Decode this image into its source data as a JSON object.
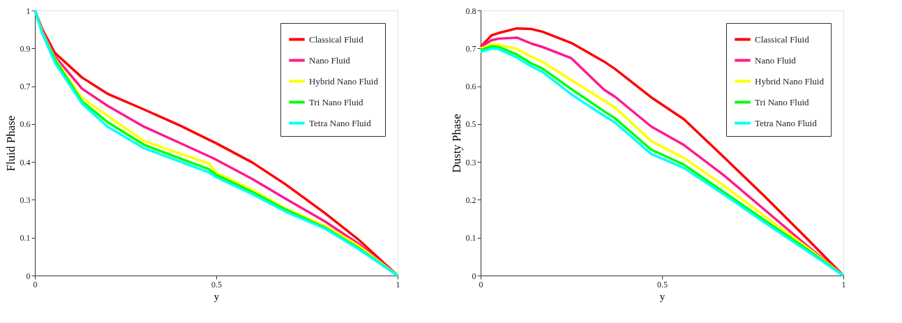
{
  "chart_data": [
    {
      "type": "line",
      "xlabel": "y",
      "ylabel": "Fluid Phase",
      "xlim": [
        0,
        1
      ],
      "ylim": [
        0,
        1
      ],
      "xticks": [
        0,
        0.5,
        1
      ],
      "yticks": [
        0,
        {
          "value": 0.1429,
          "label": "0.1"
        },
        {
          "value": 0.2857,
          "label": "0.3"
        },
        {
          "value": 0.4286,
          "label": "0.4"
        },
        {
          "value": 0.5714,
          "label": "0.6"
        },
        {
          "value": 0.7143,
          "label": "0.7"
        },
        {
          "value": 0.8571,
          "label": "0.9"
        },
        1
      ],
      "legend": "top right",
      "grid": false,
      "line_style": "solid",
      "marker": "none",
      "x": [
        0,
        0.02,
        0.055,
        0.13,
        0.2,
        0.3,
        0.4,
        0.48,
        0.5,
        0.6,
        0.69,
        0.8,
        0.89,
        1
      ],
      "series": [
        {
          "name": "Classical Fluid",
          "color": "#ff0000",
          "values": [
            1,
            0.93,
            0.84,
            0.747,
            0.686,
            0.627,
            0.566,
            0.512,
            0.499,
            0.426,
            0.345,
            0.235,
            0.138,
            0
          ]
        },
        {
          "name": "Nano Fluid",
          "color": "#ff1a8c",
          "values": [
            1,
            0.925,
            0.827,
            0.705,
            0.641,
            0.562,
            0.5,
            0.45,
            0.437,
            0.364,
            0.291,
            0.204,
            0.122,
            0
          ]
        },
        {
          "name": "Hybrid Nano Fluid",
          "color": "#ffff00",
          "values": [
            1,
            0.92,
            0.819,
            0.67,
            0.603,
            0.508,
            0.46,
            0.422,
            0.388,
            0.323,
            0.254,
            0.188,
            0.115,
            0
          ]
        },
        {
          "name": "Tri Nano Fluid",
          "color": "#00ff00",
          "values": [
            1,
            0.918,
            0.815,
            0.657,
            0.579,
            0.494,
            0.442,
            0.401,
            0.38,
            0.315,
            0.25,
            0.181,
            0.106,
            0
          ]
        },
        {
          "name": "Tetra Nano Fluid",
          "color": "#00ffff",
          "values": [
            1,
            0.915,
            0.803,
            0.649,
            0.562,
            0.481,
            0.43,
            0.389,
            0.371,
            0.307,
            0.242,
            0.177,
            0.102,
            0
          ]
        }
      ]
    },
    {
      "type": "line",
      "xlabel": "y",
      "ylabel": "Dusty Phase",
      "xlim": [
        0,
        1
      ],
      "ylim": [
        0,
        0.8
      ],
      "xticks": [
        0,
        0.5,
        1
      ],
      "yticks": [
        0,
        {
          "value": 0.1143,
          "label": "0.1"
        },
        {
          "value": 0.2286,
          "label": "0.2"
        },
        {
          "value": 0.3429,
          "label": "0.3"
        },
        {
          "value": 0.4571,
          "label": "0.5"
        },
        {
          "value": 0.5714,
          "label": "0.6"
        },
        {
          "value": 0.6857,
          "label": "0.7"
        },
        0.8
      ],
      "legend": "top right",
      "grid": false,
      "line_style": "solid",
      "marker": "none",
      "x": [
        0,
        0.03,
        0.05,
        0.1,
        0.14,
        0.17,
        0.25,
        0.34,
        0.37,
        0.47,
        0.56,
        0.67,
        0.78,
        0.9,
        1
      ],
      "series": [
        {
          "name": "Classical Fluid",
          "color": "#ff0000",
          "values": [
            0.69,
            0.725,
            0.732,
            0.746,
            0.744,
            0.736,
            0.702,
            0.646,
            0.624,
            0.538,
            0.472,
            0.358,
            0.242,
            0.111,
            0
          ]
        },
        {
          "name": "Nano Fluid",
          "color": "#ff1a8c",
          "values": [
            0.69,
            0.71,
            0.715,
            0.718,
            0.7,
            0.69,
            0.656,
            0.561,
            0.54,
            0.45,
            0.394,
            0.303,
            0.201,
            0.09,
            0
          ]
        },
        {
          "name": "Hybrid Nano Fluid",
          "color": "#ffff00",
          "values": [
            0.685,
            0.698,
            0.697,
            0.684,
            0.66,
            0.645,
            0.59,
            0.528,
            0.508,
            0.406,
            0.355,
            0.272,
            0.182,
            0.085,
            0
          ]
        },
        {
          "name": "Tri Nano Fluid",
          "color": "#00ff00",
          "values": [
            0.68,
            0.692,
            0.69,
            0.667,
            0.64,
            0.625,
            0.563,
            0.496,
            0.475,
            0.38,
            0.335,
            0.252,
            0.169,
            0.079,
            0
          ]
        },
        {
          "name": "Tetra Nano Fluid",
          "color": "#00ffff",
          "values": [
            0.675,
            0.685,
            0.683,
            0.658,
            0.631,
            0.615,
            0.547,
            0.482,
            0.462,
            0.367,
            0.325,
            0.245,
            0.162,
            0.074,
            0
          ]
        }
      ]
    }
  ]
}
